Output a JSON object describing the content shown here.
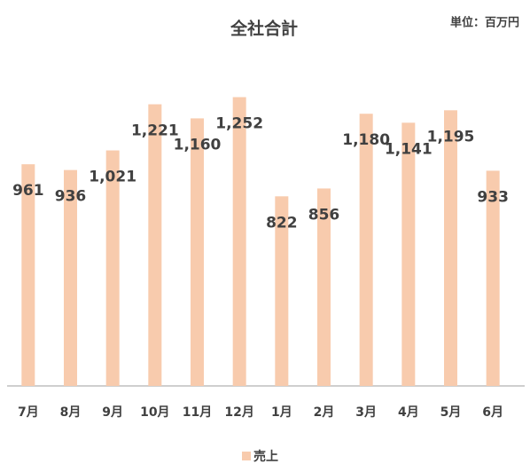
{
  "chart_data": {
    "type": "bar",
    "title": "全社合計",
    "annotation": "単位：百万円",
    "categories": [
      "7月",
      "8月",
      "9月",
      "10月",
      "11月",
      "12月",
      "1月",
      "2月",
      "3月",
      "4月",
      "5月",
      "6月"
    ],
    "series": [
      {
        "name": "売上",
        "color": "#f8cbad",
        "values": [
          961,
          936,
          1021,
          1221,
          1160,
          1252,
          822,
          856,
          1180,
          1141,
          1195,
          933
        ],
        "value_labels": [
          "961",
          "936",
          "1,021",
          "1,221",
          "1,160",
          "1,252",
          "822",
          "856",
          "1,180",
          "1,141",
          "1,195",
          "933"
        ]
      }
    ],
    "ylim": [
      0,
      1600
    ],
    "legend": "bottom"
  }
}
